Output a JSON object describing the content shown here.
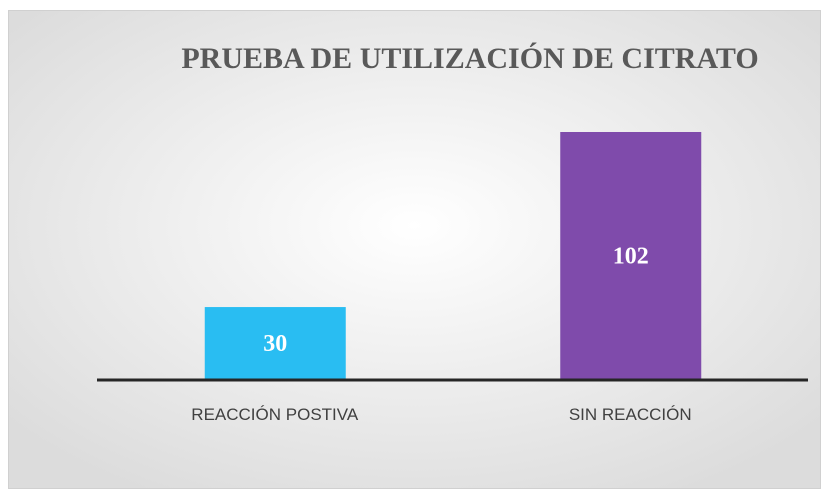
{
  "chart_data": {
    "type": "bar",
    "title": "PRUEBA DE UTILIZACIÓN DE CITRATO",
    "categories": [
      "REACCIÓN POSTIVA",
      "SIN REACCIÓN"
    ],
    "values": [
      30,
      102
    ],
    "colors": [
      "#29bdf2",
      "#7f4bab"
    ]
  }
}
